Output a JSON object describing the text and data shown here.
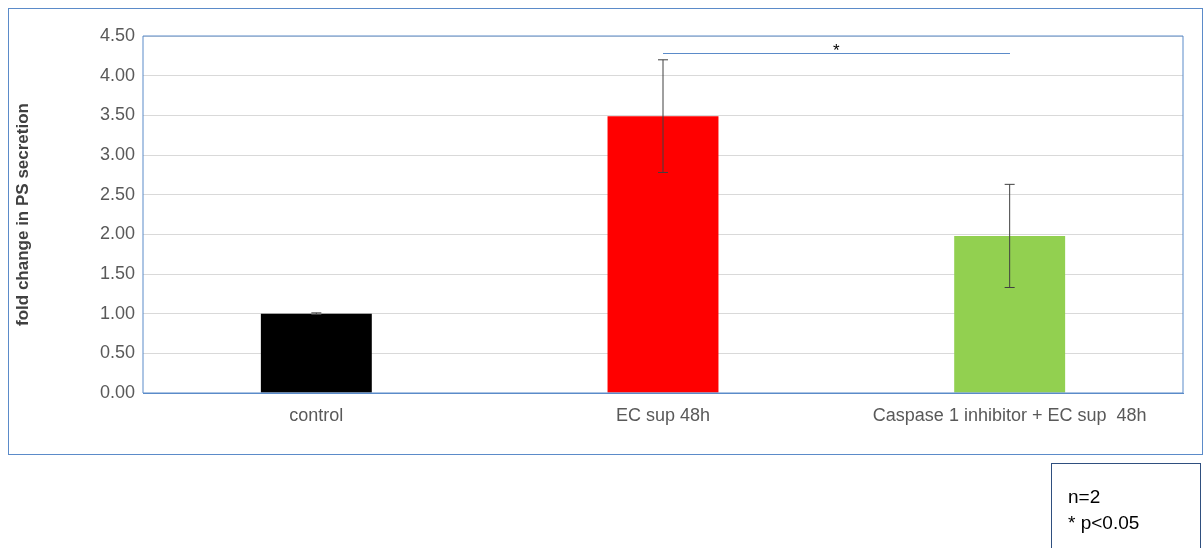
{
  "chart_data": {
    "type": "bar",
    "ylabel": "fold change in PS secretion",
    "categories": [
      "control",
      "EC sup 48h",
      "Caspase 1 inhibitor + EC sup  48h"
    ],
    "values": [
      1.0,
      3.49,
      1.98
    ],
    "colors": [
      "#000000",
      "#ff0000",
      "#92d050"
    ],
    "errors": [
      0.01,
      0.71,
      0.65
    ],
    "ylim": [
      0,
      4.5
    ],
    "yticks": [
      {
        "value": 0,
        "label": "0.00"
      },
      {
        "value": 0.5,
        "label": "0.50"
      },
      {
        "value": 1,
        "label": "1.00"
      },
      {
        "value": 1.5,
        "label": "1.50"
      },
      {
        "value": 2,
        "label": "2.00"
      },
      {
        "value": 2.5,
        "label": "2.50"
      },
      {
        "value": 3,
        "label": "3.00"
      },
      {
        "value": 3.5,
        "label": "3.50"
      },
      {
        "value": 4,
        "label": "4.00"
      },
      {
        "value": 4.5,
        "label": "4.50"
      }
    ],
    "grid": "y",
    "legend": false,
    "annotations": [
      "*",
      "n=2",
      "* p<0.05"
    ]
  }
}
